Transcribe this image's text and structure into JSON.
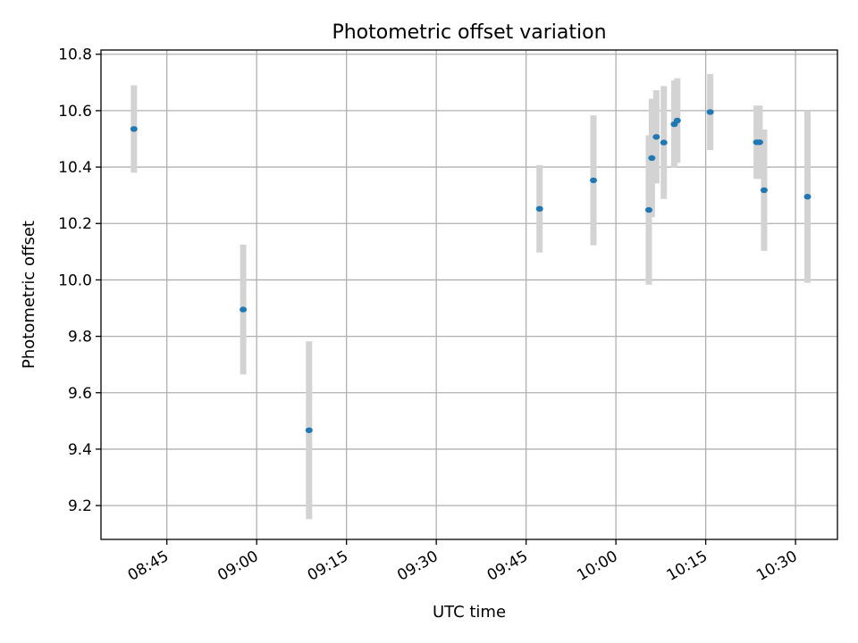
{
  "chart_data": {
    "type": "scatter",
    "title": "Photometric offset variation",
    "xlabel": "UTC time",
    "ylabel": "Photometric offset",
    "xlim": [
      "08:34",
      "10:37"
    ],
    "ylim": [
      9.08,
      10.815
    ],
    "grid": true,
    "x_ticks": [
      "08:45",
      "09:00",
      "09:15",
      "09:30",
      "09:45",
      "10:00",
      "10:15",
      "10:30"
    ],
    "y_ticks": [
      "9.2",
      "9.4",
      "9.6",
      "9.8",
      "10.0",
      "10.2",
      "10.4",
      "10.6",
      "10.8"
    ],
    "colors": {
      "point": "#1f77b4",
      "error_bar": "#d3d3d3",
      "grid": "#b0b0b0"
    },
    "series": [
      {
        "points": [
          {
            "time": "08:39:30",
            "y": 10.535,
            "err": 0.155
          },
          {
            "time": "08:57:45",
            "y": 9.895,
            "err": 0.23
          },
          {
            "time": "09:08:45",
            "y": 9.467,
            "err": 0.315
          },
          {
            "time": "09:47:15",
            "y": 10.252,
            "err": 0.155
          },
          {
            "time": "09:56:15",
            "y": 10.353,
            "err": 0.23
          },
          {
            "time": "10:05:30",
            "y": 10.248,
            "err": 0.265
          },
          {
            "time": "10:06:00",
            "y": 10.432,
            "err": 0.21
          },
          {
            "time": "10:06:45",
            "y": 10.507,
            "err": 0.165
          },
          {
            "time": "10:08:00",
            "y": 10.487,
            "err": 0.2
          },
          {
            "time": "10:09:45",
            "y": 10.552,
            "err": 0.155
          },
          {
            "time": "10:10:15",
            "y": 10.565,
            "err": 0.15
          },
          {
            "time": "10:15:45",
            "y": 10.595,
            "err": 0.135
          },
          {
            "time": "10:23:30",
            "y": 10.488,
            "err": 0.13
          },
          {
            "time": "10:24:00",
            "y": 10.488,
            "err": 0.13
          },
          {
            "time": "10:24:45",
            "y": 10.318,
            "err": 0.215
          },
          {
            "time": "10:32:00",
            "y": 10.295,
            "err": 0.305
          }
        ]
      }
    ]
  }
}
